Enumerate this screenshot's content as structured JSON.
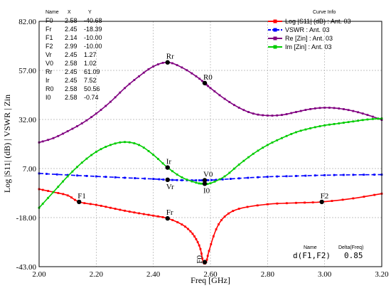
{
  "chart_data": {
    "type": "line",
    "xlabel": "Freq [GHz]",
    "ylabel": "Log |S11| (dB) | VSWR | Zin",
    "xlim": [
      2.0,
      3.2
    ],
    "ylim": [
      -43.0,
      82.0
    ],
    "x_ticks": [
      "2.00",
      "2.20",
      "2.40",
      "2.60",
      "2.80",
      "3.00",
      "3.20"
    ],
    "y_ticks": [
      "-43.00",
      "-18.00",
      "7.00",
      "32.00",
      "57.00",
      "82.00"
    ],
    "grid": true,
    "legend_position": "top-right",
    "legend_header": "Curve Info",
    "series": [
      {
        "name": "Log |S11| (dB) : Ant. 03",
        "color": "#ff0000",
        "style": "solid",
        "points": [
          [
            2.0,
            -3.5
          ],
          [
            2.05,
            -5.0
          ],
          [
            2.1,
            -6.7
          ],
          [
            2.14,
            -10.0
          ],
          [
            2.2,
            -11.5
          ],
          [
            2.25,
            -13.0
          ],
          [
            2.3,
            -14.5
          ],
          [
            2.35,
            -15.8
          ],
          [
            2.4,
            -17.0
          ],
          [
            2.45,
            -18.39
          ],
          [
            2.5,
            -21.5
          ],
          [
            2.53,
            -25.0
          ],
          [
            2.55,
            -29.0
          ],
          [
            2.565,
            -34.0
          ],
          [
            2.575,
            -40.68
          ],
          [
            2.585,
            -40.68
          ],
          [
            2.595,
            -35.0
          ],
          [
            2.62,
            -24.0
          ],
          [
            2.65,
            -17.5
          ],
          [
            2.7,
            -13.5
          ],
          [
            2.8,
            -11.2
          ],
          [
            2.9,
            -10.5
          ],
          [
            2.99,
            -10.0
          ],
          [
            3.1,
            -8.2
          ],
          [
            3.2,
            -5.8
          ]
        ]
      },
      {
        "name": "VSWR : Ant. 03",
        "color": "#0000ff",
        "style": "dashed",
        "points": [
          [
            2.0,
            4.5
          ],
          [
            2.1,
            3.7
          ],
          [
            2.2,
            3.0
          ],
          [
            2.3,
            2.3
          ],
          [
            2.4,
            1.7
          ],
          [
            2.45,
            1.27
          ],
          [
            2.5,
            1.05
          ],
          [
            2.55,
            1.0
          ],
          [
            2.58,
            1.02
          ],
          [
            2.62,
            1.25
          ],
          [
            2.7,
            2.0
          ],
          [
            2.8,
            2.8
          ],
          [
            2.9,
            3.2
          ],
          [
            3.0,
            3.6
          ],
          [
            3.1,
            3.8
          ],
          [
            3.2,
            3.9
          ]
        ]
      },
      {
        "name": "Re [Zin] : Ant. 03",
        "color": "#800080",
        "style": "solid",
        "points": [
          [
            2.0,
            20.3
          ],
          [
            2.05,
            22.5
          ],
          [
            2.1,
            26.0
          ],
          [
            2.15,
            30.0
          ],
          [
            2.2,
            35.0
          ],
          [
            2.25,
            41.0
          ],
          [
            2.3,
            48.0
          ],
          [
            2.35,
            54.0
          ],
          [
            2.4,
            59.0
          ],
          [
            2.45,
            61.09
          ],
          [
            2.5,
            58.5
          ],
          [
            2.55,
            54.0
          ],
          [
            2.58,
            50.56
          ],
          [
            2.6,
            48.0
          ],
          [
            2.65,
            42.5
          ],
          [
            2.7,
            38.0
          ],
          [
            2.75,
            35.0
          ],
          [
            2.8,
            34.0
          ],
          [
            2.85,
            34.3
          ],
          [
            2.9,
            35.8
          ],
          [
            2.95,
            37.3
          ],
          [
            3.0,
            38.0
          ],
          [
            3.05,
            37.6
          ],
          [
            3.1,
            36.3
          ],
          [
            3.15,
            34.3
          ],
          [
            3.2,
            31.8
          ]
        ]
      },
      {
        "name": "Im [Zin] : Ant. 03",
        "color": "#00cc00",
        "style": "solid",
        "points": [
          [
            2.0,
            -13.0
          ],
          [
            2.05,
            -5.0
          ],
          [
            2.1,
            3.0
          ],
          [
            2.15,
            10.0
          ],
          [
            2.2,
            15.5
          ],
          [
            2.25,
            19.0
          ],
          [
            2.3,
            20.5
          ],
          [
            2.35,
            19.0
          ],
          [
            2.4,
            14.0
          ],
          [
            2.45,
            7.52
          ],
          [
            2.5,
            2.5
          ],
          [
            2.55,
            -0.2
          ],
          [
            2.575,
            -0.74
          ],
          [
            2.6,
            -0.5
          ],
          [
            2.65,
            3.0
          ],
          [
            2.7,
            9.0
          ],
          [
            2.75,
            14.5
          ],
          [
            2.8,
            19.0
          ],
          [
            2.85,
            22.5
          ],
          [
            2.9,
            25.5
          ],
          [
            2.95,
            27.5
          ],
          [
            3.0,
            29.0
          ],
          [
            3.05,
            30.0
          ],
          [
            3.1,
            31.0
          ],
          [
            3.15,
            32.0
          ],
          [
            3.2,
            32.5
          ]
        ]
      }
    ],
    "marker_table": {
      "headers": [
        "Name",
        "X",
        "Y"
      ],
      "rows": [
        [
          "F0",
          "2.58",
          "-40.68"
        ],
        [
          "Fr",
          "2.45",
          "-18.39"
        ],
        [
          "F1",
          "2.14",
          "-10.00"
        ],
        [
          "F2",
          "2.99",
          "-10.00"
        ],
        [
          "Vr",
          "2.45",
          "1.27"
        ],
        [
          "V0",
          "2.58",
          "1.02"
        ],
        [
          "Rr",
          "2.45",
          "61.09"
        ],
        [
          "Ir",
          "2.45",
          "7.52"
        ],
        [
          "R0",
          "2.58",
          "50.56"
        ],
        [
          "I0",
          "2.58",
          "-0.74"
        ]
      ]
    },
    "markers": [
      {
        "label": "F0",
        "x": 2.58,
        "y": -40.68,
        "rotate": true
      },
      {
        "label": "Fr",
        "x": 2.45,
        "y": -18.39
      },
      {
        "label": "F1",
        "x": 2.14,
        "y": -10.0
      },
      {
        "label": "F2",
        "x": 2.99,
        "y": -10.0
      },
      {
        "label": "Vr",
        "x": 2.45,
        "y": 1.27
      },
      {
        "label": "V0",
        "x": 2.58,
        "y": 1.02
      },
      {
        "label": "Rr",
        "x": 2.45,
        "y": 61.09
      },
      {
        "label": "Ir",
        "x": 2.45,
        "y": 7.52
      },
      {
        "label": "R0",
        "x": 2.58,
        "y": 50.56
      },
      {
        "label": "I0",
        "x": 2.58,
        "y": -0.74
      }
    ],
    "delta_box": {
      "name_header": "Name",
      "value_header": "Delta(Freq)",
      "name": "d(F1,F2)",
      "value": "0.85"
    }
  }
}
